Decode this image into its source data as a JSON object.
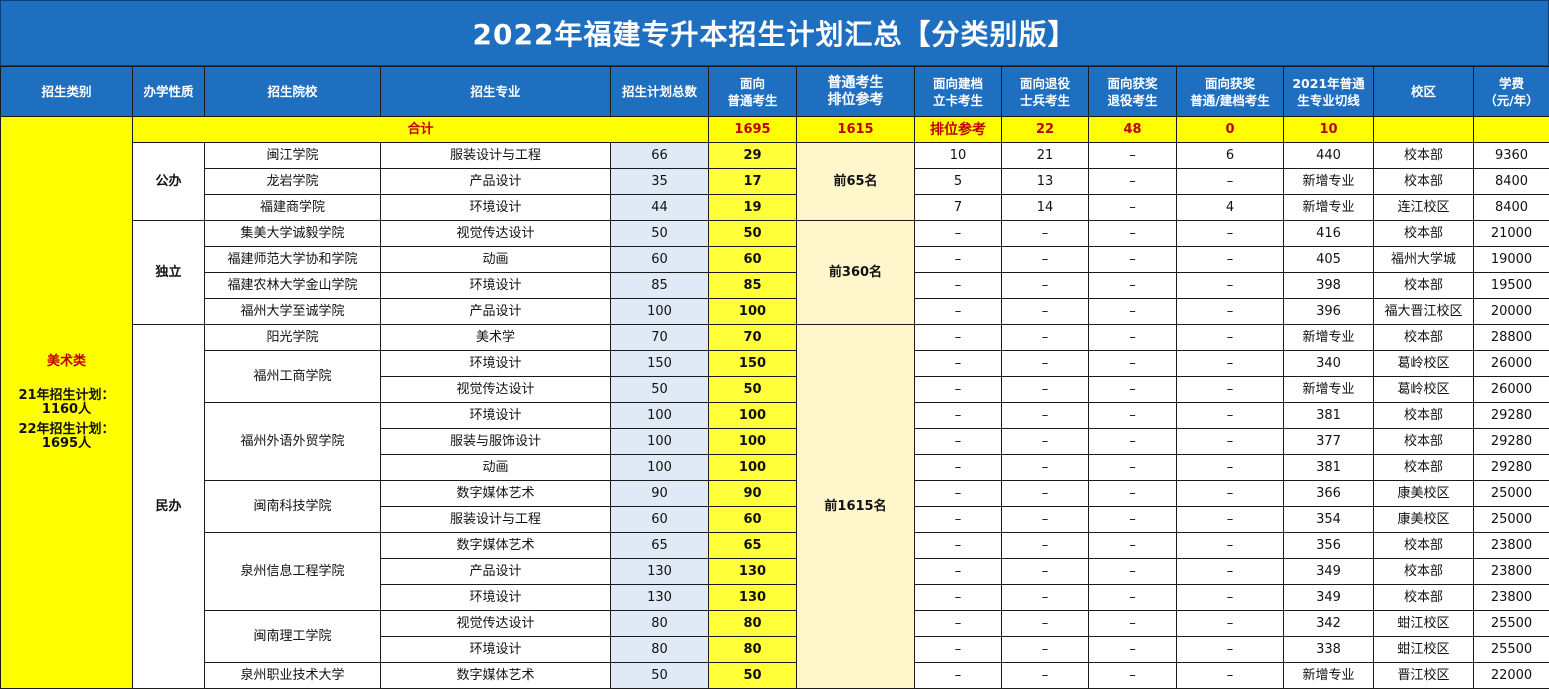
{
  "title": "2022年福建专升本招生计划汇总【分类别版】",
  "headers": {
    "category": "招生类别",
    "nature": "办学性质",
    "school": "招生院校",
    "major": "招生专业",
    "plan_total": "招生计划总数",
    "general_a": "面向",
    "general_b": "普通考生",
    "rank_a": "普通考生",
    "rank_b": "排位参考",
    "card_a": "面向建档",
    "card_b": "立卡考生",
    "veteran_a": "面向退役",
    "veteran_b": "士兵考生",
    "award_vet_a": "面向获奖",
    "award_vet_b": "退役考生",
    "award_gen_a": "面向获奖",
    "award_gen_b": "普通/建档考生",
    "cutoff_a": "2021年普通",
    "cutoff_b": "生专业切线",
    "campus": "校区",
    "fee_a": "学费",
    "fee_b": "（元/年）"
  },
  "category": {
    "name": "美术类",
    "plan21": "21年招生计划：1160人",
    "plan22": "22年招生计划：1695人"
  },
  "total_row": {
    "label": "合计",
    "plan_total": "1695",
    "general": "1615",
    "rank": "排位参考",
    "card": "22",
    "veteran": "48",
    "award_vet": "0",
    "award_gen": "10"
  },
  "natures": {
    "public": "公办",
    "independent": "独立",
    "private": "民办"
  },
  "ranks": {
    "public": "前65名",
    "independent": "前360名",
    "private": "前1615名"
  },
  "schools": {
    "s1": "闽江学院",
    "s2": "龙岩学院",
    "s3": "福建商学院",
    "s4": "集美大学诚毅学院",
    "s5": "福建师范大学协和学院",
    "s6": "福建农林大学金山学院",
    "s7": "福州大学至诚学院",
    "s8": "阳光学院",
    "s9": "福州工商学院",
    "s10": "福州外语外贸学院",
    "s11": "闽南科技学院",
    "s12": "泉州信息工程学院",
    "s13": "闽南理工学院",
    "s14": "泉州职业技术大学"
  },
  "rows": [
    {
      "major": "服装设计与工程",
      "total": "66",
      "general": "29",
      "card": "10",
      "veteran": "21",
      "award_vet": "–",
      "award_gen": "6",
      "cutoff": "440",
      "campus": "校本部",
      "fee": "9360"
    },
    {
      "major": "产品设计",
      "total": "35",
      "general": "17",
      "card": "5",
      "veteran": "13",
      "award_vet": "–",
      "award_gen": "–",
      "cutoff": "新增专业",
      "campus": "校本部",
      "fee": "8400"
    },
    {
      "major": "环境设计",
      "total": "44",
      "general": "19",
      "card": "7",
      "veteran": "14",
      "award_vet": "–",
      "award_gen": "4",
      "cutoff": "新增专业",
      "campus": "连江校区",
      "fee": "8400"
    },
    {
      "major": "视觉传达设计",
      "total": "50",
      "general": "50",
      "card": "–",
      "veteran": "–",
      "award_vet": "–",
      "award_gen": "–",
      "cutoff": "416",
      "campus": "校本部",
      "fee": "21000"
    },
    {
      "major": "动画",
      "total": "60",
      "general": "60",
      "card": "–",
      "veteran": "–",
      "award_vet": "–",
      "award_gen": "–",
      "cutoff": "405",
      "campus": "福州大学城",
      "fee": "19000"
    },
    {
      "major": "环境设计",
      "total": "85",
      "general": "85",
      "card": "–",
      "veteran": "–",
      "award_vet": "–",
      "award_gen": "–",
      "cutoff": "398",
      "campus": "校本部",
      "fee": "19500"
    },
    {
      "major": "产品设计",
      "total": "100",
      "general": "100",
      "card": "–",
      "veteran": "–",
      "award_vet": "–",
      "award_gen": "–",
      "cutoff": "396",
      "campus": "福大晋江校区",
      "fee": "20000"
    },
    {
      "major": "美术学",
      "total": "70",
      "general": "70",
      "card": "–",
      "veteran": "–",
      "award_vet": "–",
      "award_gen": "–",
      "cutoff": "新增专业",
      "campus": "校本部",
      "fee": "28800"
    },
    {
      "major": "环境设计",
      "total": "150",
      "general": "150",
      "card": "–",
      "veteran": "–",
      "award_vet": "–",
      "award_gen": "–",
      "cutoff": "340",
      "campus": "葛岭校区",
      "fee": "26000"
    },
    {
      "major": "视觉传达设计",
      "total": "50",
      "general": "50",
      "card": "–",
      "veteran": "–",
      "award_vet": "–",
      "award_gen": "–",
      "cutoff": "新增专业",
      "campus": "葛岭校区",
      "fee": "26000"
    },
    {
      "major": "环境设计",
      "total": "100",
      "general": "100",
      "card": "–",
      "veteran": "–",
      "award_vet": "–",
      "award_gen": "–",
      "cutoff": "381",
      "campus": "校本部",
      "fee": "29280"
    },
    {
      "major": "服装与服饰设计",
      "total": "100",
      "general": "100",
      "card": "–",
      "veteran": "–",
      "award_vet": "–",
      "award_gen": "–",
      "cutoff": "377",
      "campus": "校本部",
      "fee": "29280"
    },
    {
      "major": "动画",
      "total": "100",
      "general": "100",
      "card": "–",
      "veteran": "–",
      "award_vet": "–",
      "award_gen": "–",
      "cutoff": "381",
      "campus": "校本部",
      "fee": "29280"
    },
    {
      "major": "数字媒体艺术",
      "total": "90",
      "general": "90",
      "card": "–",
      "veteran": "–",
      "award_vet": "–",
      "award_gen": "–",
      "cutoff": "366",
      "campus": "康美校区",
      "fee": "25000"
    },
    {
      "major": "服装设计与工程",
      "total": "60",
      "general": "60",
      "card": "–",
      "veteran": "–",
      "award_vet": "–",
      "award_gen": "–",
      "cutoff": "354",
      "campus": "康美校区",
      "fee": "25000"
    },
    {
      "major": "数字媒体艺术",
      "total": "65",
      "general": "65",
      "card": "–",
      "veteran": "–",
      "award_vet": "–",
      "award_gen": "–",
      "cutoff": "356",
      "campus": "校本部",
      "fee": "23800"
    },
    {
      "major": "产品设计",
      "total": "130",
      "general": "130",
      "card": "–",
      "veteran": "–",
      "award_vet": "–",
      "award_gen": "–",
      "cutoff": "349",
      "campus": "校本部",
      "fee": "23800"
    },
    {
      "major": "环境设计",
      "total": "130",
      "general": "130",
      "card": "–",
      "veteran": "–",
      "award_vet": "–",
      "award_gen": "–",
      "cutoff": "349",
      "campus": "校本部",
      "fee": "23800"
    },
    {
      "major": "视觉传达设计",
      "total": "80",
      "general": "80",
      "card": "–",
      "veteran": "–",
      "award_vet": "–",
      "award_gen": "–",
      "cutoff": "342",
      "campus": "蚶江校区",
      "fee": "25500"
    },
    {
      "major": "环境设计",
      "total": "80",
      "general": "80",
      "card": "–",
      "veteran": "–",
      "award_vet": "–",
      "award_gen": "–",
      "cutoff": "338",
      "campus": "蚶江校区",
      "fee": "25500"
    },
    {
      "major": "数字媒体艺术",
      "total": "50",
      "general": "50",
      "card": "–",
      "veteran": "–",
      "award_vet": "–",
      "award_gen": "–",
      "cutoff": "新增专业",
      "campus": "晋江校区",
      "fee": "22000"
    }
  ]
}
